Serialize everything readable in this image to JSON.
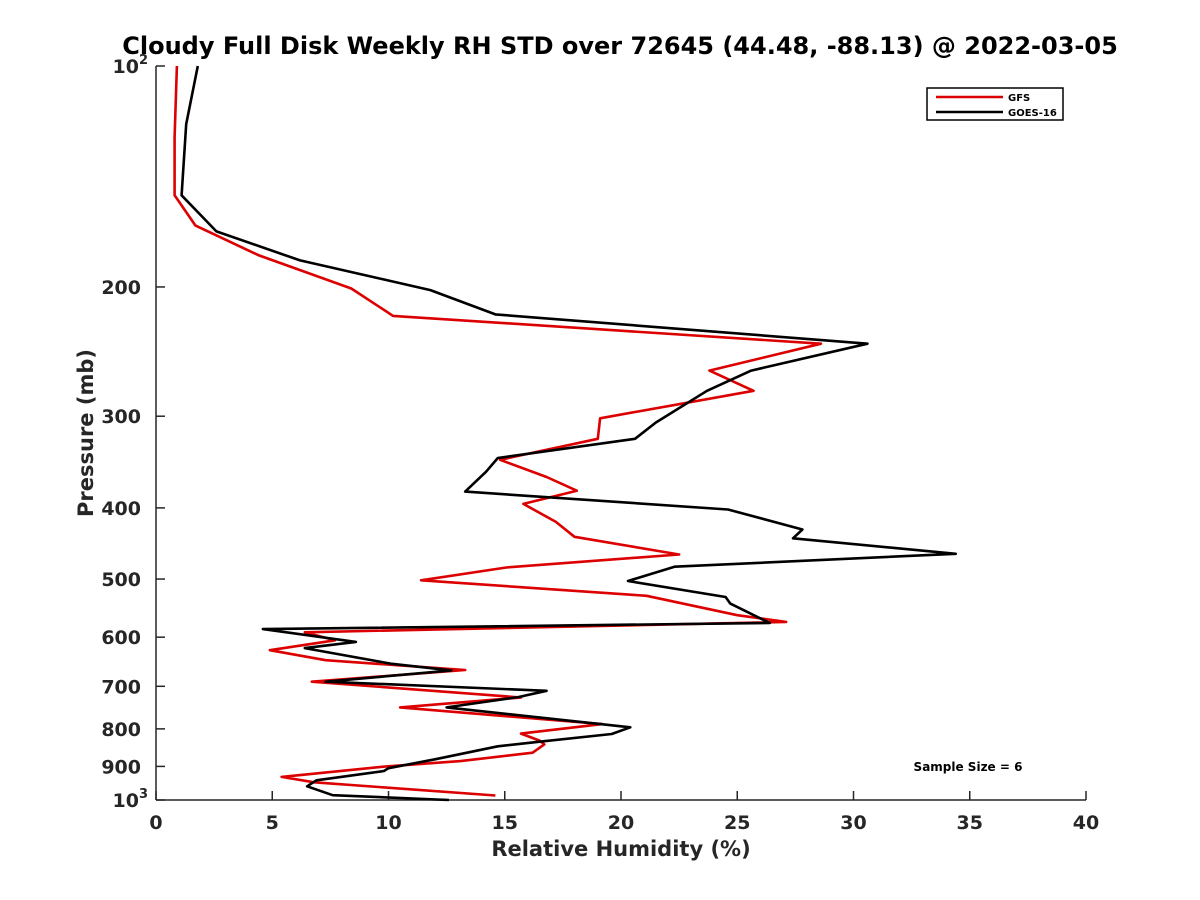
{
  "chart_data": {
    "type": "line",
    "title": "Cloudy Full Disk Weekly RH STD over 72645 (44.48, -88.13) @ 2022-03-05",
    "xlabel": "Relative Humidity (%)",
    "ylabel": "Pressure (mb)",
    "xlim": [
      0,
      40
    ],
    "ylim": [
      100,
      1000
    ],
    "y_scale": "log",
    "y_reversed": true,
    "x_ticks": [
      "0",
      "5",
      "10",
      "15",
      "20",
      "25",
      "30",
      "35",
      "40"
    ],
    "y_ticks": [
      {
        "value": 100,
        "base": "10",
        "exp": "2"
      },
      {
        "value": 200,
        "text": "200"
      },
      {
        "value": 300,
        "text": "300"
      },
      {
        "value": 400,
        "text": "400"
      },
      {
        "value": 500,
        "text": "500"
      },
      {
        "value": 600,
        "text": "600"
      },
      {
        "value": 700,
        "text": "700"
      },
      {
        "value": 800,
        "text": "800"
      },
      {
        "value": 900,
        "text": "900"
      },
      {
        "value": 1000,
        "base": "10",
        "exp": "3"
      }
    ],
    "grid": false,
    "legend": "top-right",
    "series": [
      {
        "name": "GFS",
        "color": "#dd0000",
        "points": [
          [
            0.9,
            100
          ],
          [
            0.8,
            125
          ],
          [
            0.8,
            150
          ],
          [
            1.7,
            165
          ],
          [
            4.4,
            181
          ],
          [
            8.4,
            201
          ],
          [
            10.2,
            219
          ],
          [
            28.6,
            239
          ],
          [
            23.8,
            260
          ],
          [
            25.7,
            277
          ],
          [
            19.1,
            302
          ],
          [
            19.0,
            322
          ],
          [
            14.8,
            344
          ],
          [
            16.8,
            363
          ],
          [
            18.1,
            379
          ],
          [
            15.8,
            395
          ],
          [
            17.2,
            418
          ],
          [
            18.0,
            438
          ],
          [
            22.5,
            463
          ],
          [
            15.1,
            482
          ],
          [
            11.4,
            502
          ],
          [
            21.1,
            527
          ],
          [
            25.0,
            560
          ],
          [
            27.1,
            572
          ],
          [
            6.4,
            591
          ],
          [
            7.7,
            606
          ],
          [
            4.9,
            625
          ],
          [
            7.3,
            645
          ],
          [
            13.3,
            665
          ],
          [
            6.7,
            690
          ],
          [
            15.7,
            725
          ],
          [
            10.5,
            748
          ],
          [
            19.2,
            788
          ],
          [
            15.7,
            812
          ],
          [
            16.5,
            830
          ],
          [
            16.7,
            840
          ],
          [
            16.2,
            862
          ],
          [
            13.1,
            885
          ],
          [
            9.9,
            900
          ],
          [
            5.4,
            930
          ],
          [
            6.8,
            946
          ],
          [
            14.6,
            986
          ]
        ]
      },
      {
        "name": "GOES-16",
        "color": "#000000",
        "points": [
          [
            1.8,
            100
          ],
          [
            1.3,
            120
          ],
          [
            1.1,
            150
          ],
          [
            2.6,
            168
          ],
          [
            6.2,
            184
          ],
          [
            11.8,
            202
          ],
          [
            14.6,
            218
          ],
          [
            30.6,
            239
          ],
          [
            25.6,
            260
          ],
          [
            23.7,
            277
          ],
          [
            21.5,
            306
          ],
          [
            20.6,
            322
          ],
          [
            14.7,
            342
          ],
          [
            14.2,
            357
          ],
          [
            13.3,
            380
          ],
          [
            24.6,
            402
          ],
          [
            27.8,
            428
          ],
          [
            27.4,
            440
          ],
          [
            34.4,
            462
          ],
          [
            22.3,
            481
          ],
          [
            20.3,
            503
          ],
          [
            24.5,
            529
          ],
          [
            24.7,
            540
          ],
          [
            26.4,
            574
          ],
          [
            4.6,
            585
          ],
          [
            8.6,
            609
          ],
          [
            6.4,
            621
          ],
          [
            10.1,
            652
          ],
          [
            12.7,
            666
          ],
          [
            7.3,
            690
          ],
          [
            16.8,
            710
          ],
          [
            15.6,
            724
          ],
          [
            12.5,
            748
          ],
          [
            20.4,
            796
          ],
          [
            19.6,
            813
          ],
          [
            16.6,
            832
          ],
          [
            14.7,
            845
          ],
          [
            12.0,
            880
          ],
          [
            10.0,
            905
          ],
          [
            9.8,
            913
          ],
          [
            6.9,
            940
          ],
          [
            6.5,
            958
          ],
          [
            7.6,
            985
          ],
          [
            12.6,
            1000
          ]
        ]
      }
    ],
    "annotations": [
      "Sample Size = 6"
    ]
  }
}
